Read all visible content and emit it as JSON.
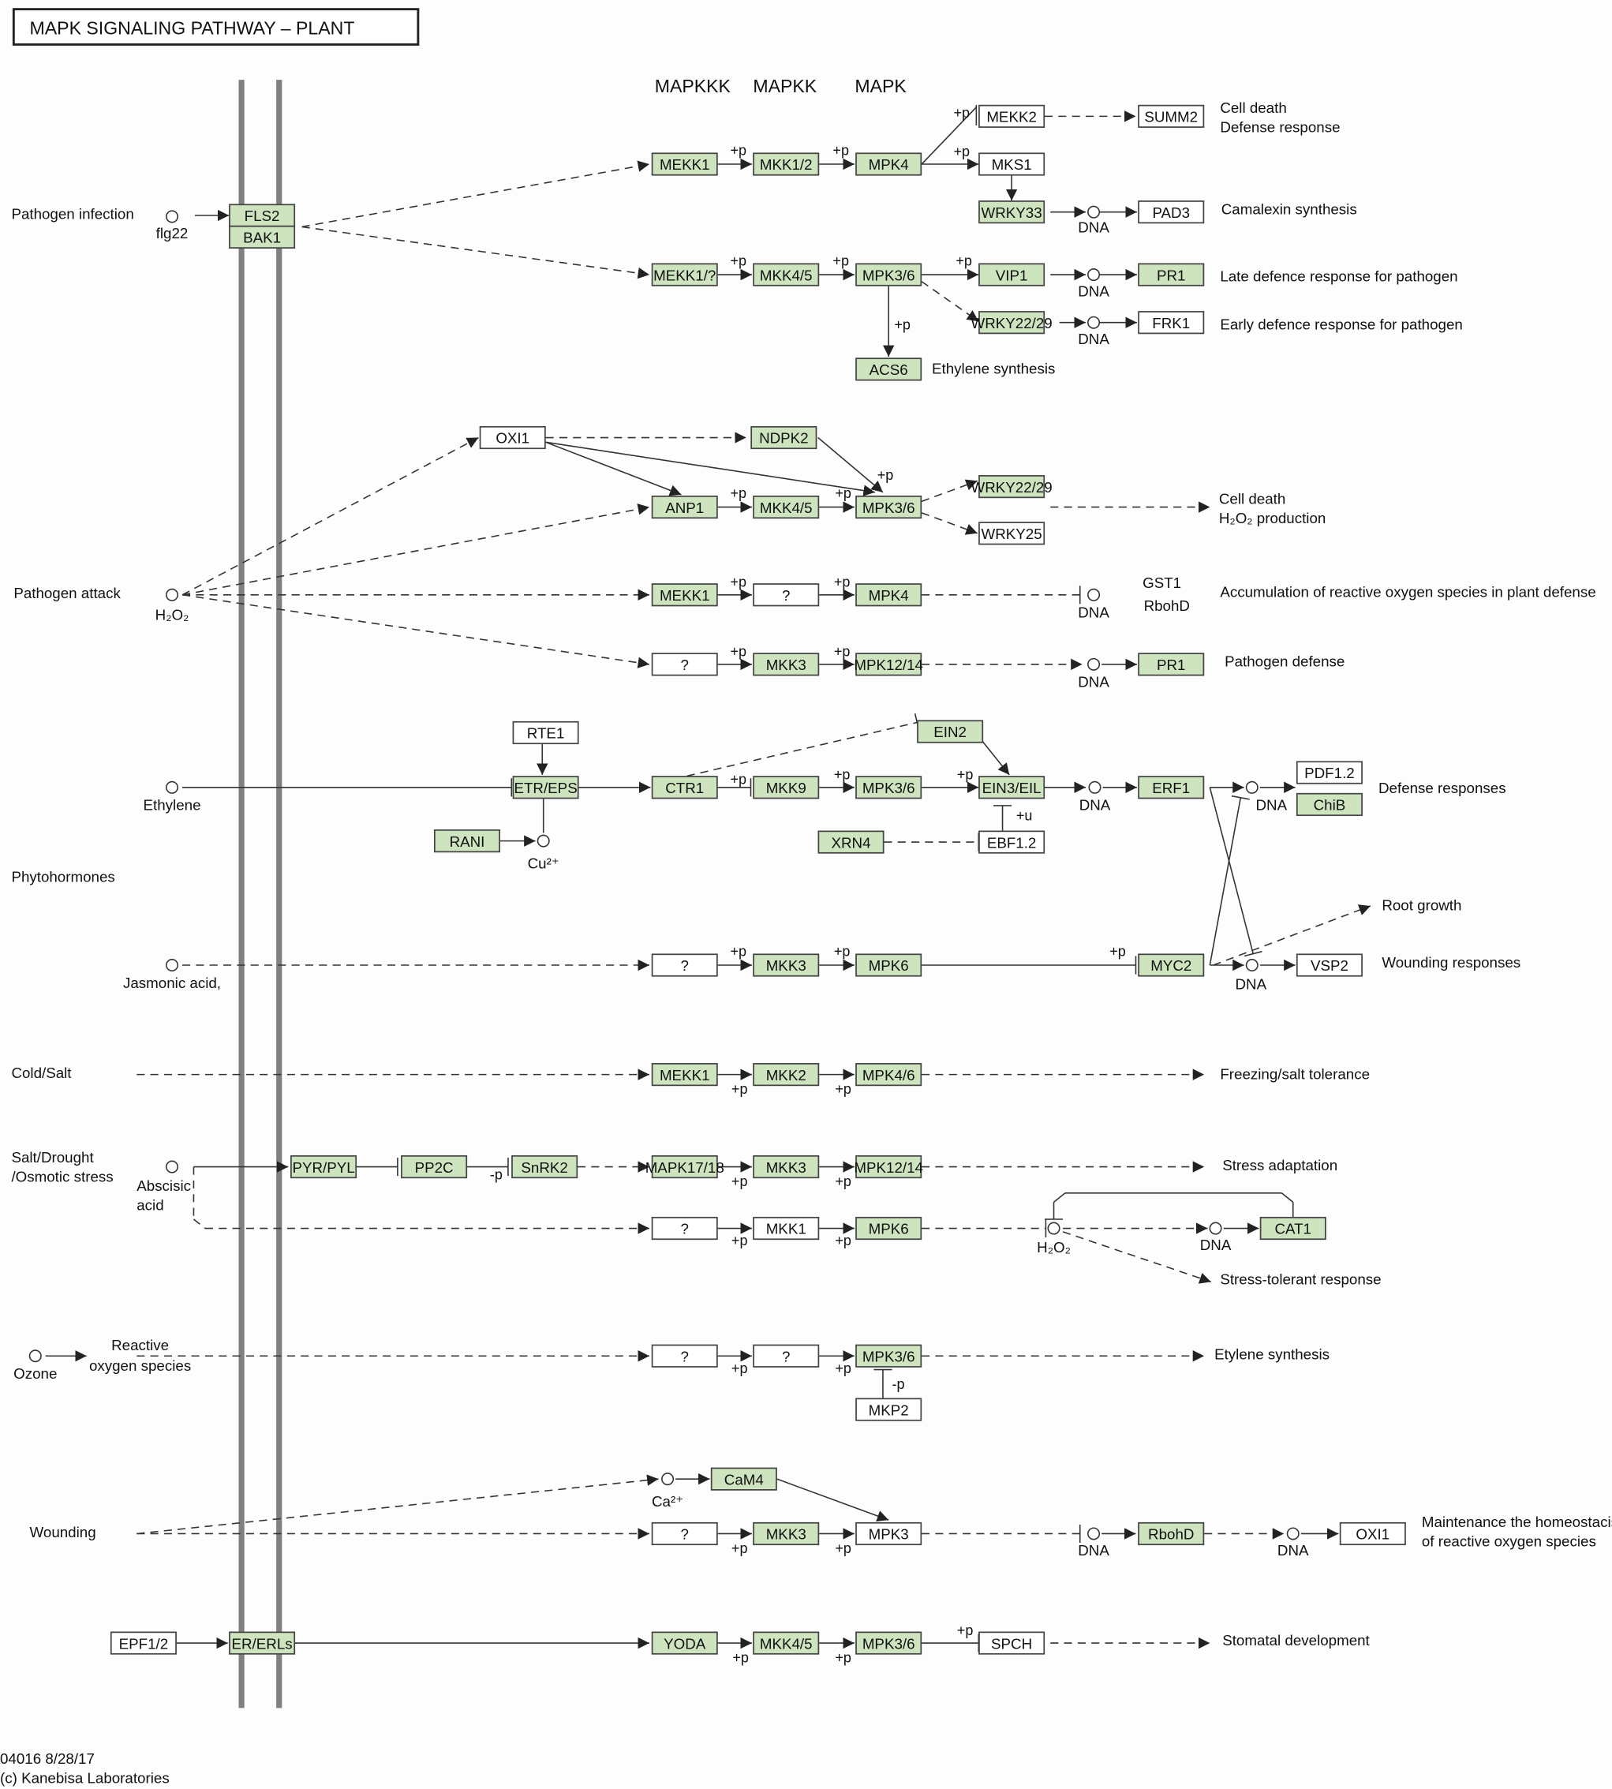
{
  "title": "MAPK SIGNALING PATHWAY – PLANT",
  "column_headers": [
    "MAPKKK",
    "MAPKK",
    "MAPK"
  ],
  "colors": {
    "highlighted_gene": "#cde4bf",
    "plain_gene": "#ffffff",
    "membrane": "#808080",
    "edge": "#333333"
  },
  "genes": [
    {
      "label": "MEKK1",
      "highlighted": true
    },
    {
      "label": "MKK1/2",
      "highlighted": true
    },
    {
      "label": "MPK4",
      "highlighted": true
    },
    {
      "label": "MEKK2",
      "highlighted": false
    },
    {
      "label": "SUMM2",
      "highlighted": false
    },
    {
      "label": "MKS1",
      "highlighted": false
    },
    {
      "label": "WRKY33",
      "highlighted": true
    },
    {
      "label": "PAD3",
      "highlighted": false
    },
    {
      "label": "FLS2",
      "highlighted": true
    },
    {
      "label": "BAK1",
      "highlighted": true
    },
    {
      "label": "MEKK1/?",
      "highlighted": true
    },
    {
      "label": "MKK4/5",
      "highlighted": true
    },
    {
      "label": "MPK3/6",
      "highlighted": true
    },
    {
      "label": "VIP1",
      "highlighted": true
    },
    {
      "label": "PR1",
      "highlighted": true
    },
    {
      "label": "WRKY22/29",
      "highlighted": true
    },
    {
      "label": "FRK1",
      "highlighted": false
    },
    {
      "label": "ACS6",
      "highlighted": true
    },
    {
      "label": "OXI1",
      "highlighted": false
    },
    {
      "label": "NDPK2",
      "highlighted": true
    },
    {
      "label": "ANP1",
      "highlighted": true
    },
    {
      "label": "MKK4/5",
      "highlighted": true
    },
    {
      "label": "MPK3/6",
      "highlighted": true
    },
    {
      "label": "WRKY22/29",
      "highlighted": true
    },
    {
      "label": "WRKY25",
      "highlighted": false
    },
    {
      "label": "MEKK1",
      "highlighted": true
    },
    {
      "label": "?",
      "highlighted": false
    },
    {
      "label": "MPK4",
      "highlighted": true
    },
    {
      "label": "?",
      "highlighted": false
    },
    {
      "label": "MKK3",
      "highlighted": true
    },
    {
      "label": "MPK12/14",
      "highlighted": true
    },
    {
      "label": "PR1",
      "highlighted": true
    },
    {
      "label": "RTE1",
      "highlighted": false
    },
    {
      "label": "EIN2",
      "highlighted": true
    },
    {
      "label": "ETR/EPS",
      "highlighted": true
    },
    {
      "label": "CTR1",
      "highlighted": true
    },
    {
      "label": "MKK9",
      "highlighted": true
    },
    {
      "label": "MPK3/6",
      "highlighted": true
    },
    {
      "label": "EIN3/EIL",
      "highlighted": true
    },
    {
      "label": "ERF1",
      "highlighted": true
    },
    {
      "label": "PDF1.2",
      "highlighted": false
    },
    {
      "label": "ChiB",
      "highlighted": true
    },
    {
      "label": "RANI",
      "highlighted": true
    },
    {
      "label": "XRN4",
      "highlighted": true
    },
    {
      "label": "EBF1.2",
      "highlighted": false
    },
    {
      "label": "?",
      "highlighted": false
    },
    {
      "label": "MKK3",
      "highlighted": true
    },
    {
      "label": "MPK6",
      "highlighted": true
    },
    {
      "label": "MYC2",
      "highlighted": true
    },
    {
      "label": "VSP2",
      "highlighted": false
    },
    {
      "label": "MEKK1",
      "highlighted": true
    },
    {
      "label": "MKK2",
      "highlighted": true
    },
    {
      "label": "MPK4/6",
      "highlighted": true
    },
    {
      "label": "PYR/PYL",
      "highlighted": true
    },
    {
      "label": "PP2C",
      "highlighted": true
    },
    {
      "label": "SnRK2",
      "highlighted": true
    },
    {
      "label": "MAPK17/18",
      "highlighted": true
    },
    {
      "label": "MKK3",
      "highlighted": true
    },
    {
      "label": "MPK12/14",
      "highlighted": true
    },
    {
      "label": "?",
      "highlighted": false
    },
    {
      "label": "MKK1",
      "highlighted": false
    },
    {
      "label": "MPK6",
      "highlighted": true
    },
    {
      "label": "CAT1",
      "highlighted": true
    },
    {
      "label": "?",
      "highlighted": false
    },
    {
      "label": "?",
      "highlighted": false
    },
    {
      "label": "MPK3/6",
      "highlighted": true
    },
    {
      "label": "MKP2",
      "highlighted": false
    },
    {
      "label": "CaM4",
      "highlighted": true
    },
    {
      "label": "?",
      "highlighted": false
    },
    {
      "label": "MKK3",
      "highlighted": true
    },
    {
      "label": "MPK3",
      "highlighted": false
    },
    {
      "label": "RbohD",
      "highlighted": true
    },
    {
      "label": "OXI1",
      "highlighted": false
    },
    {
      "label": "EPF1/2",
      "highlighted": false
    },
    {
      "label": "ER/ERLs",
      "highlighted": true
    },
    {
      "label": "YODA",
      "highlighted": true
    },
    {
      "label": "MKK4/5",
      "highlighted": true
    },
    {
      "label": "MPK3/6",
      "highlighted": true
    },
    {
      "label": "SPCH",
      "highlighted": false
    }
  ],
  "labels": [
    "Pathogen infection",
    "flg22",
    "Pathogen attack",
    "H₂O₂",
    "Ethylene",
    "Phytohormones",
    "Jasmonic acid,",
    "Cold/Salt",
    "Salt/Drought",
    "/Osmotic stress",
    "Abscisic",
    "acid",
    "Ozone",
    "Reactive",
    "oxygen species",
    "Wounding",
    "Cu²⁺",
    "Ca²⁺",
    "H₂O₂",
    "Cell death",
    "Defense response",
    "Camalexin synthesis",
    "Late defence response for pathogen",
    "Early defence response for pathogen",
    "Ethylene synthesis",
    "Cell death",
    "H₂O₂ production",
    "GST1",
    "RbohD",
    "Accumulation of reactive oxygen species in plant defense",
    "Pathogen defense",
    "Defense responses",
    "Root growth",
    "Wounding responses",
    "Freezing/salt tolerance",
    "Stress adaptation",
    "Stress-tolerant response",
    "Etylene synthesis",
    "Maintenance the homeostacis",
    "of reactive oxygen species",
    "Stomatal development",
    "DNA",
    "DNA",
    "DNA",
    "DNA",
    "DNA",
    "DNA",
    "DNA",
    "DNA",
    "DNA",
    "DNA",
    "DNA"
  ],
  "modifiers": [
    "+p",
    "+p",
    "+p",
    "+p",
    "+p",
    "+p",
    "+p",
    "+p",
    "+p",
    "+p",
    "+p",
    "+p",
    "+p",
    "+p",
    "+p",
    "+p",
    "+p",
    "+p",
    "+p",
    "+p",
    "+p",
    "+p",
    "+p",
    "+p",
    "+p",
    "+p",
    "+p",
    "+p",
    "+p",
    "+p",
    "+p",
    "+p",
    "+p",
    "+p",
    "+u",
    "-p",
    "-p"
  ],
  "footer": [
    "04016 8/28/17",
    "(c) Kanebisa Laboratories"
  ]
}
